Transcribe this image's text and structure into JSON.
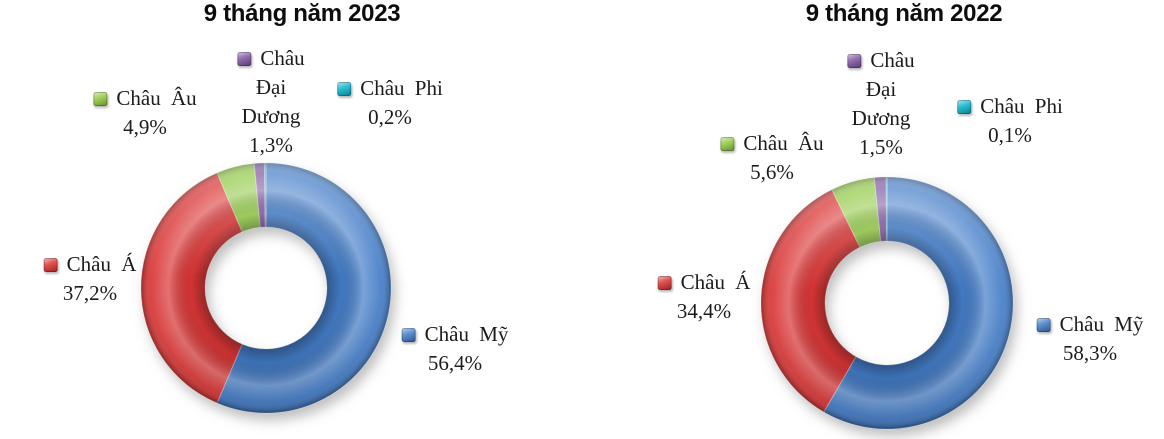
{
  "page": {
    "background": "#ffffff"
  },
  "chart_data": [
    {
      "type": "donut",
      "title": "9 tháng năm 2023",
      "categories": [
        "Châu Mỹ",
        "Châu Á",
        "Châu Âu",
        "Châu Đại Dương",
        "Châu Phi"
      ],
      "values": [
        56.4,
        37.2,
        4.9,
        1.3,
        0.2
      ],
      "value_labels": [
        "56,4%",
        "37,2%",
        "4,9%",
        "1,3%",
        "0,2%"
      ],
      "colors": [
        "#3B77C6",
        "#D92C2C",
        "#8CC63C",
        "#7A4E9E",
        "#00B0C8"
      ],
      "start_angle_deg": -90,
      "direction": "clockwise",
      "inner_radius_ratio": 0.49,
      "legend_position": "callouts-around-donut",
      "legend": {
        "my": [
          "Châu Mỹ",
          "56,4%"
        ],
        "a": [
          "Châu Á",
          "37,2%"
        ],
        "eu": [
          "Châu Âu",
          "4,9%"
        ],
        "oceania": [
          "Châu",
          "Đại",
          "Dương",
          "1,3%"
        ],
        "phi": [
          "Châu Phi",
          "0,2%"
        ]
      }
    },
    {
      "type": "donut",
      "title": "9 tháng năm 2022",
      "categories": [
        "Châu Mỹ",
        "Châu Á",
        "Châu Âu",
        "Châu Đại Dương",
        "Châu Phi"
      ],
      "values": [
        58.3,
        34.4,
        5.6,
        1.5,
        0.1
      ],
      "value_labels": [
        "58,3%",
        "34,4%",
        "5,6%",
        "1,5%",
        "0,1%"
      ],
      "colors": [
        "#3B77C6",
        "#D92C2C",
        "#8CC63C",
        "#7A4E9E",
        "#00B0C8"
      ],
      "start_angle_deg": -90,
      "direction": "clockwise",
      "inner_radius_ratio": 0.49,
      "legend_position": "callouts-around-donut",
      "legend": {
        "my": [
          "Châu Mỹ",
          "58,3%"
        ],
        "a": [
          "Châu Á",
          "34,4%"
        ],
        "eu": [
          "Châu Âu",
          "5,6%"
        ],
        "oceania": [
          "Châu",
          "Đại",
          "Dương",
          "1,5%"
        ],
        "phi": [
          "Châu Phi",
          "0,1%"
        ]
      }
    }
  ]
}
